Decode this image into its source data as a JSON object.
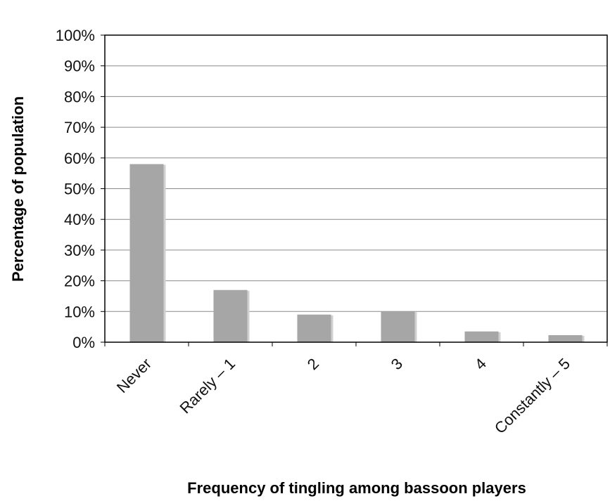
{
  "chart_data": {
    "type": "bar",
    "categories": [
      "Never",
      "Rarely – 1",
      "2",
      "3",
      "4",
      "Constantly – 5"
    ],
    "values": [
      58,
      17,
      9,
      10,
      3.5,
      2.3
    ],
    "xlabel": "Frequency of tingling among bassoon players",
    "ylabel": "Percentage of population",
    "ylim": [
      0,
      100
    ],
    "yticks": [
      "0%",
      "10%",
      "20%",
      "30%",
      "40%",
      "50%",
      "60%",
      "70%",
      "80%",
      "90%",
      "100%"
    ],
    "grid": true,
    "bar_color": "#a6a6a6",
    "bar_shadow_color": "#d0d0d0"
  }
}
